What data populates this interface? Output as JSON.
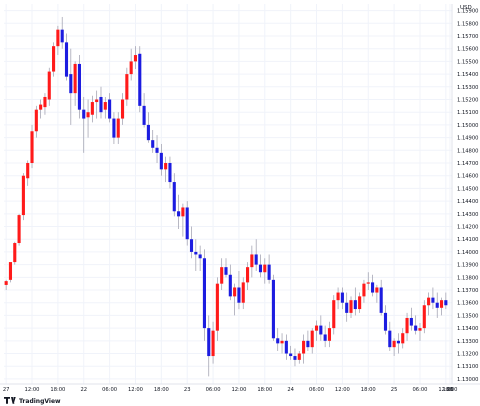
{
  "chart_data": {
    "type": "candlestick",
    "currency_label": "USD",
    "colors": {
      "up": "#ff1a1a",
      "down": "#1c1ce0",
      "wick": "#9a9aaa",
      "grid": "#f0f3fa",
      "axis": "#e0e3eb",
      "text": "#131722"
    },
    "price_ticks": [
      "1.15900",
      "1.15800",
      "1.15700",
      "1.15600",
      "1.15500",
      "1.15400",
      "1.15300",
      "1.15200",
      "1.15100",
      "1.15000",
      "1.14900",
      "1.14800",
      "1.14700",
      "1.14600",
      "1.14500",
      "1.14400",
      "1.14300",
      "1.14200",
      "1.14100",
      "1.14000",
      "1.13900",
      "1.13800",
      "1.13700",
      "1.13600",
      "1.13500",
      "1.13400",
      "1.13300",
      "1.13200",
      "1.13100",
      "1.13000"
    ],
    "ylim": [
      1.1296,
      1.15952
    ],
    "time_ticks": [
      {
        "label": "27",
        "index": 0
      },
      {
        "label": "12:00",
        "index": 6
      },
      {
        "label": "18:00",
        "index": 12
      },
      {
        "label": "22",
        "index": 18
      },
      {
        "label": "06:00",
        "index": 24
      },
      {
        "label": "12:00",
        "index": 30
      },
      {
        "label": "18:00",
        "index": 36
      },
      {
        "label": "23",
        "index": 42
      },
      {
        "label": "06:00",
        "index": 48
      },
      {
        "label": "12:00",
        "index": 54
      },
      {
        "label": "18:00",
        "index": 60
      },
      {
        "label": "24",
        "index": 66
      },
      {
        "label": "06:00",
        "index": 72
      },
      {
        "label": "12:00",
        "index": 78
      },
      {
        "label": "18:00",
        "index": 84
      },
      {
        "label": "25",
        "index": 90
      },
      {
        "label": "06:00",
        "index": 96
      },
      {
        "label": "12:00",
        "index": 102
      },
      {
        "label": "18:00",
        "index": 108
      },
      {
        "label": "26",
        "index": 114
      },
      {
        "label": "0",
        "index": 120
      }
    ],
    "candles": [
      {
        "o": 1.1374,
        "h": 1.1378,
        "l": 1.137,
        "c": 1.1377
      },
      {
        "o": 1.1378,
        "h": 1.139,
        "l": 1.1376,
        "c": 1.1392
      },
      {
        "o": 1.1392,
        "h": 1.1408,
        "l": 1.139,
        "c": 1.1407
      },
      {
        "o": 1.1407,
        "h": 1.143,
        "l": 1.1405,
        "c": 1.1429
      },
      {
        "o": 1.1429,
        "h": 1.1462,
        "l": 1.1425,
        "c": 1.146
      },
      {
        "o": 1.1458,
        "h": 1.1472,
        "l": 1.1452,
        "c": 1.147
      },
      {
        "o": 1.147,
        "h": 1.15,
        "l": 1.1466,
        "c": 1.1495
      },
      {
        "o": 1.1495,
        "h": 1.1515,
        "l": 1.149,
        "c": 1.1512
      },
      {
        "o": 1.1512,
        "h": 1.152,
        "l": 1.1505,
        "c": 1.1516
      },
      {
        "o": 1.1514,
        "h": 1.1525,
        "l": 1.1508,
        "c": 1.1522
      },
      {
        "o": 1.152,
        "h": 1.1545,
        "l": 1.1515,
        "c": 1.1542
      },
      {
        "o": 1.1542,
        "h": 1.1565,
        "l": 1.1538,
        "c": 1.1562
      },
      {
        "o": 1.1562,
        "h": 1.1578,
        "l": 1.1555,
        "c": 1.1575
      },
      {
        "o": 1.1575,
        "h": 1.1585,
        "l": 1.156,
        "c": 1.1565
      },
      {
        "o": 1.1565,
        "h": 1.1572,
        "l": 1.1535,
        "c": 1.1538
      },
      {
        "o": 1.154,
        "h": 1.156,
        "l": 1.15,
        "c": 1.1525
      },
      {
        "o": 1.1525,
        "h": 1.155,
        "l": 1.1515,
        "c": 1.1548
      },
      {
        "o": 1.1548,
        "h": 1.1555,
        "l": 1.1505,
        "c": 1.1512
      },
      {
        "o": 1.1512,
        "h": 1.1522,
        "l": 1.1478,
        "c": 1.1505
      },
      {
        "o": 1.1506,
        "h": 1.152,
        "l": 1.149,
        "c": 1.151
      },
      {
        "o": 1.1508,
        "h": 1.1523,
        "l": 1.1502,
        "c": 1.1518
      },
      {
        "o": 1.1518,
        "h": 1.1527,
        "l": 1.1505,
        "c": 1.152
      },
      {
        "o": 1.1522,
        "h": 1.153,
        "l": 1.1505,
        "c": 1.151
      },
      {
        "o": 1.1512,
        "h": 1.1522,
        "l": 1.1505,
        "c": 1.1518
      },
      {
        "o": 1.152,
        "h": 1.1525,
        "l": 1.1502,
        "c": 1.1505
      },
      {
        "o": 1.1505,
        "h": 1.151,
        "l": 1.1485,
        "c": 1.149
      },
      {
        "o": 1.149,
        "h": 1.151,
        "l": 1.1485,
        "c": 1.1505
      },
      {
        "o": 1.1505,
        "h": 1.1525,
        "l": 1.15,
        "c": 1.152
      },
      {
        "o": 1.152,
        "h": 1.1545,
        "l": 1.1515,
        "c": 1.154
      },
      {
        "o": 1.154,
        "h": 1.156,
        "l": 1.1535,
        "c": 1.155
      },
      {
        "o": 1.155,
        "h": 1.1562,
        "l": 1.1544,
        "c": 1.1555
      },
      {
        "o": 1.1556,
        "h": 1.1562,
        "l": 1.151,
        "c": 1.1515
      },
      {
        "o": 1.1515,
        "h": 1.1525,
        "l": 1.1498,
        "c": 1.15
      },
      {
        "o": 1.15,
        "h": 1.151,
        "l": 1.1486,
        "c": 1.1488
      },
      {
        "o": 1.1488,
        "h": 1.1496,
        "l": 1.1478,
        "c": 1.1482
      },
      {
        "o": 1.1482,
        "h": 1.1492,
        "l": 1.147,
        "c": 1.1478
      },
      {
        "o": 1.1478,
        "h": 1.1485,
        "l": 1.146,
        "c": 1.1465
      },
      {
        "o": 1.1465,
        "h": 1.1475,
        "l": 1.1455,
        "c": 1.147
      },
      {
        "o": 1.147,
        "h": 1.1475,
        "l": 1.145,
        "c": 1.1455
      },
      {
        "o": 1.1455,
        "h": 1.1462,
        "l": 1.1428,
        "c": 1.1432
      },
      {
        "o": 1.1432,
        "h": 1.1445,
        "l": 1.1418,
        "c": 1.1428
      },
      {
        "o": 1.1428,
        "h": 1.1438,
        "l": 1.1412,
        "c": 1.1435
      },
      {
        "o": 1.1435,
        "h": 1.144,
        "l": 1.1405,
        "c": 1.141
      },
      {
        "o": 1.141,
        "h": 1.142,
        "l": 1.1395,
        "c": 1.14
      },
      {
        "o": 1.14,
        "h": 1.141,
        "l": 1.1385,
        "c": 1.1398
      },
      {
        "o": 1.1398,
        "h": 1.1405,
        "l": 1.1385,
        "c": 1.1395
      },
      {
        "o": 1.1395,
        "h": 1.1402,
        "l": 1.133,
        "c": 1.134
      },
      {
        "o": 1.134,
        "h": 1.135,
        "l": 1.1302,
        "c": 1.1318
      },
      {
        "o": 1.1318,
        "h": 1.1345,
        "l": 1.1312,
        "c": 1.1338
      },
      {
        "o": 1.1338,
        "h": 1.138,
        "l": 1.133,
        "c": 1.1375
      },
      {
        "o": 1.1375,
        "h": 1.1395,
        "l": 1.137,
        "c": 1.1388
      },
      {
        "o": 1.1388,
        "h": 1.1395,
        "l": 1.138,
        "c": 1.1382
      },
      {
        "o": 1.1382,
        "h": 1.139,
        "l": 1.1362,
        "c": 1.1365
      },
      {
        "o": 1.1365,
        "h": 1.1375,
        "l": 1.135,
        "c": 1.1372
      },
      {
        "o": 1.1372,
        "h": 1.1385,
        "l": 1.1355,
        "c": 1.136
      },
      {
        "o": 1.136,
        "h": 1.138,
        "l": 1.1355,
        "c": 1.1376
      },
      {
        "o": 1.1376,
        "h": 1.1392,
        "l": 1.137,
        "c": 1.1388
      },
      {
        "o": 1.1388,
        "h": 1.1405,
        "l": 1.138,
        "c": 1.1398
      },
      {
        "o": 1.1398,
        "h": 1.141,
        "l": 1.1385,
        "c": 1.139
      },
      {
        "o": 1.139,
        "h": 1.1398,
        "l": 1.138,
        "c": 1.1384
      },
      {
        "o": 1.1384,
        "h": 1.1395,
        "l": 1.1375,
        "c": 1.139
      },
      {
        "o": 1.139,
        "h": 1.1398,
        "l": 1.1375,
        "c": 1.1378
      },
      {
        "o": 1.1378,
        "h": 1.1382,
        "l": 1.133,
        "c": 1.1332
      },
      {
        "o": 1.1332,
        "h": 1.134,
        "l": 1.1322,
        "c": 1.1328
      },
      {
        "o": 1.1328,
        "h": 1.1336,
        "l": 1.132,
        "c": 1.133
      },
      {
        "o": 1.133,
        "h": 1.1335,
        "l": 1.1315,
        "c": 1.132
      },
      {
        "o": 1.132,
        "h": 1.1326,
        "l": 1.1315,
        "c": 1.1318
      },
      {
        "o": 1.1318,
        "h": 1.1324,
        "l": 1.131,
        "c": 1.1315
      },
      {
        "o": 1.1315,
        "h": 1.1322,
        "l": 1.1312,
        "c": 1.132
      },
      {
        "o": 1.132,
        "h": 1.1335,
        "l": 1.1312,
        "c": 1.133
      },
      {
        "o": 1.133,
        "h": 1.1338,
        "l": 1.1322,
        "c": 1.1325
      },
      {
        "o": 1.1325,
        "h": 1.134,
        "l": 1.132,
        "c": 1.1338
      },
      {
        "o": 1.1338,
        "h": 1.1346,
        "l": 1.133,
        "c": 1.1342
      },
      {
        "o": 1.1342,
        "h": 1.135,
        "l": 1.133,
        "c": 1.1335
      },
      {
        "o": 1.1335,
        "h": 1.1342,
        "l": 1.1325,
        "c": 1.133
      },
      {
        "o": 1.133,
        "h": 1.1345,
        "l": 1.1325,
        "c": 1.134
      },
      {
        "o": 1.134,
        "h": 1.1366,
        "l": 1.1335,
        "c": 1.1362
      },
      {
        "o": 1.1362,
        "h": 1.1372,
        "l": 1.1355,
        "c": 1.1368
      },
      {
        "o": 1.1368,
        "h": 1.1372,
        "l": 1.1355,
        "c": 1.136
      },
      {
        "o": 1.136,
        "h": 1.1368,
        "l": 1.1345,
        "c": 1.1352
      },
      {
        "o": 1.1352,
        "h": 1.1365,
        "l": 1.1348,
        "c": 1.1362
      },
      {
        "o": 1.1362,
        "h": 1.1372,
        "l": 1.135,
        "c": 1.1355
      },
      {
        "o": 1.1355,
        "h": 1.1368,
        "l": 1.1352,
        "c": 1.1365
      },
      {
        "o": 1.1365,
        "h": 1.1378,
        "l": 1.136,
        "c": 1.1375
      },
      {
        "o": 1.1375,
        "h": 1.1384,
        "l": 1.137,
        "c": 1.1376
      },
      {
        "o": 1.1376,
        "h": 1.1382,
        "l": 1.1365,
        "c": 1.1368
      },
      {
        "o": 1.1368,
        "h": 1.1374,
        "l": 1.136,
        "c": 1.1372
      },
      {
        "o": 1.1372,
        "h": 1.1378,
        "l": 1.135,
        "c": 1.1352
      },
      {
        "o": 1.1352,
        "h": 1.1358,
        "l": 1.1335,
        "c": 1.1338
      },
      {
        "o": 1.1338,
        "h": 1.1345,
        "l": 1.1322,
        "c": 1.1325
      },
      {
        "o": 1.1325,
        "h": 1.1332,
        "l": 1.1318,
        "c": 1.133
      },
      {
        "o": 1.133,
        "h": 1.1336,
        "l": 1.132,
        "c": 1.1328
      },
      {
        "o": 1.1328,
        "h": 1.134,
        "l": 1.1324,
        "c": 1.1336
      },
      {
        "o": 1.1336,
        "h": 1.1352,
        "l": 1.133,
        "c": 1.1348
      },
      {
        "o": 1.1348,
        "h": 1.1356,
        "l": 1.1338,
        "c": 1.1342
      },
      {
        "o": 1.1342,
        "h": 1.135,
        "l": 1.1335,
        "c": 1.1338
      },
      {
        "o": 1.1338,
        "h": 1.1344,
        "l": 1.133,
        "c": 1.134
      },
      {
        "o": 1.134,
        "h": 1.1362,
        "l": 1.1336,
        "c": 1.1358
      },
      {
        "o": 1.1358,
        "h": 1.1368,
        "l": 1.135,
        "c": 1.1364
      },
      {
        "o": 1.1364,
        "h": 1.1372,
        "l": 1.1355,
        "c": 1.136
      },
      {
        "o": 1.136,
        "h": 1.1368,
        "l": 1.1348,
        "c": 1.1356
      },
      {
        "o": 1.1356,
        "h": 1.1364,
        "l": 1.135,
        "c": 1.1362
      },
      {
        "o": 1.1362,
        "h": 1.1368,
        "l": 1.1355,
        "c": 1.1358
      }
    ]
  },
  "branding": {
    "logo_text": "TradingView"
  }
}
